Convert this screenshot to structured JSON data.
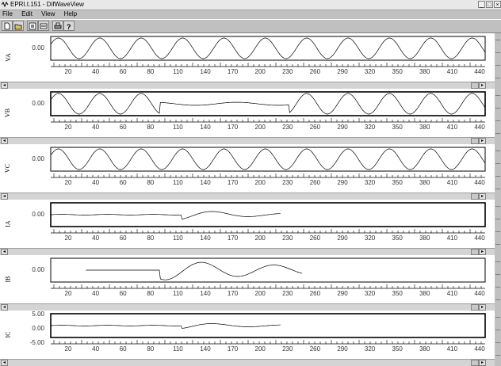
{
  "window": {
    "title": "EPRI.t.151 - DifWaveView",
    "buttons": {
      "minimize": "_",
      "maximize": "□",
      "close": "×"
    }
  },
  "menu": [
    "File",
    "Edit",
    "View",
    "Help"
  ],
  "toolbar": {
    "buttons": [
      {
        "icon": "new-document-icon"
      },
      {
        "icon": "open-file-icon"
      },
      {
        "icon": "export-icon"
      },
      {
        "icon": "settings-icon"
      },
      {
        "icon": "print-icon"
      },
      {
        "icon": "help-icon"
      }
    ]
  },
  "x_ticks_a": [
    "20",
    "40",
    "60",
    "80",
    "110",
    "140",
    "170",
    "200",
    "230",
    "260",
    "290",
    "320",
    "350",
    "380",
    "410",
    "440"
  ],
  "x_ticks_b": [
    "20",
    "40",
    "60",
    "80",
    "110",
    "140",
    "170",
    "200",
    "230",
    "260",
    "290",
    "320",
    "350",
    "380",
    "410",
    "440"
  ],
  "panels": [
    {
      "name": "VA",
      "y_labels": [
        "0.00"
      ],
      "signal": "sine",
      "amp": 1.0,
      "start": 0.0,
      "end": 1.0,
      "frame": false
    },
    {
      "name": "VB",
      "y_labels": [
        "0.00"
      ],
      "signal": "sine-dip",
      "amp": 1.0,
      "start": 0.0,
      "end": 1.0,
      "frame": true
    },
    {
      "name": "VC",
      "y_labels": [
        "0.00"
      ],
      "signal": "sine",
      "amp": 1.0,
      "start": 0.0,
      "end": 1.0,
      "frame": false
    },
    {
      "name": "IA",
      "y_labels": [
        "0.00"
      ],
      "signal": "fault",
      "amp": 0.4,
      "start": 0.0,
      "end": 0.53,
      "frame": true
    },
    {
      "name": "IB",
      "y_labels": [
        "0.00"
      ],
      "signal": "fault-big",
      "amp": 0.9,
      "start": 0.08,
      "end": 0.58,
      "frame": false
    },
    {
      "name": "IC",
      "y_labels": [
        "5.00",
        "0.00",
        "-5.00"
      ],
      "signal": "fault",
      "amp": 0.25,
      "start": 0.0,
      "end": 0.53,
      "frame": true
    }
  ],
  "colors": {
    "window_bg": "#c0c0c0",
    "plot_bg": "#ffffff",
    "trace": "#000000"
  }
}
